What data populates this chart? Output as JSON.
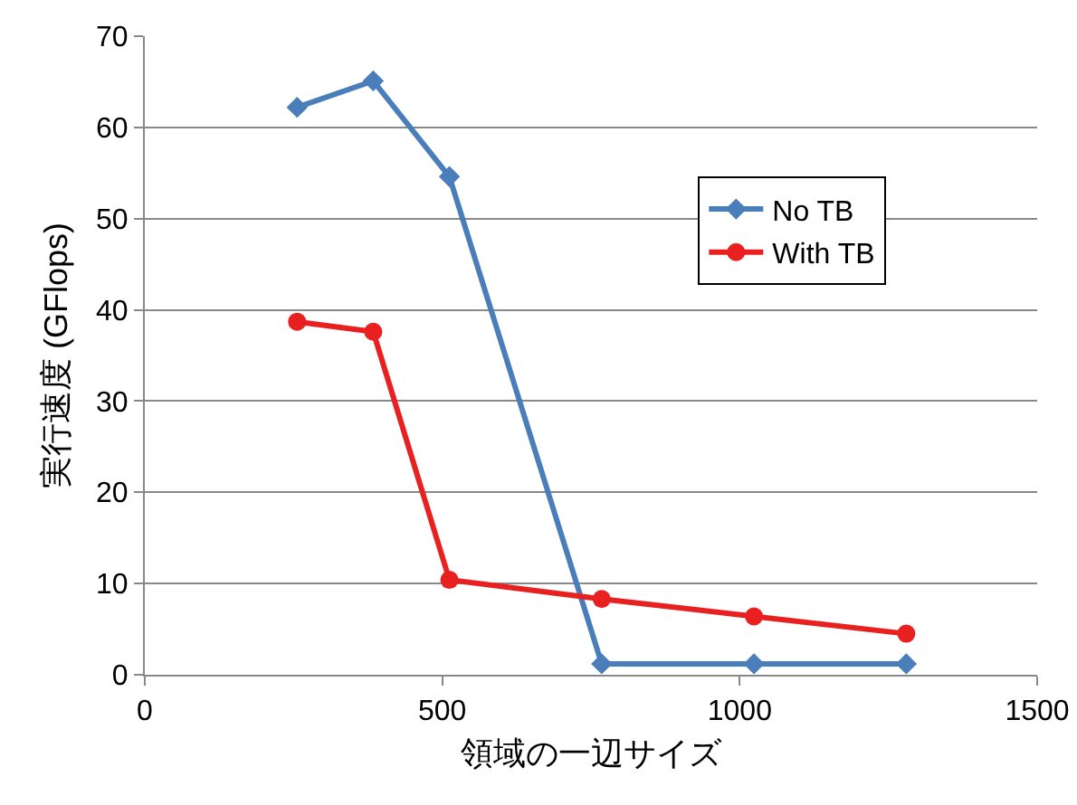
{
  "chart_data": {
    "type": "line",
    "xlabel": "領域の一辺サイズ",
    "ylabel": "実行速度 (GFlops)",
    "x": [
      256,
      384,
      512,
      768,
      1024,
      1280
    ],
    "series": [
      {
        "name": "No TB",
        "color": "#4a7ebb",
        "marker": "diamond",
        "values": [
          62.2,
          65.1,
          54.6,
          1.2,
          1.2,
          1.2
        ]
      },
      {
        "name": "With TB",
        "color": "#e8201f",
        "marker": "circle",
        "values": [
          38.7,
          37.6,
          10.4,
          8.3,
          6.4,
          4.5
        ]
      }
    ],
    "xlim": [
      0,
      1500
    ],
    "xticks": [
      0,
      500,
      1000,
      1500
    ],
    "ylim": [
      0,
      70
    ],
    "yticks": [
      0,
      10,
      20,
      30,
      40,
      50,
      60,
      70
    ],
    "grid": "y",
    "legend": "top right",
    "line_style": "solid"
  }
}
